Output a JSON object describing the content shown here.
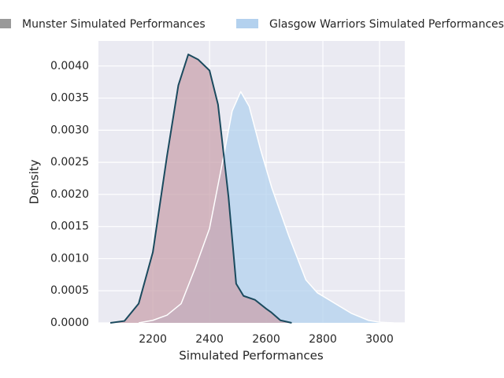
{
  "chart_data": {
    "type": "area",
    "xlabel": "Simulated Performances",
    "ylabel": "Density",
    "xlim": [
      2008,
      3089
    ],
    "ylim": [
      0,
      0.00439
    ],
    "xticks": [
      2200,
      2400,
      2600,
      2800,
      3000
    ],
    "yticks": [
      {
        "value": 0,
        "label": "0.0000"
      },
      {
        "value": 0.0005,
        "label": "0.0005"
      },
      {
        "value": 0.001,
        "label": "0.0010"
      },
      {
        "value": 0.0015,
        "label": "0.0015"
      },
      {
        "value": 0.002,
        "label": "0.0020"
      },
      {
        "value": 0.0025,
        "label": "0.0025"
      },
      {
        "value": 0.003,
        "label": "0.0030"
      },
      {
        "value": 0.0035,
        "label": "0.0035"
      },
      {
        "value": 0.004,
        "label": "0.0040"
      }
    ],
    "grid": true,
    "legend": "top",
    "series": [
      {
        "name": "Munster Simulated Performances",
        "color": "#c9a3ae",
        "line_color": "#1a4a5e",
        "x": [
          2050,
          2100,
          2150,
          2200,
          2250,
          2290,
          2325,
          2360,
          2400,
          2430,
          2467,
          2494,
          2520,
          2560,
          2600,
          2619,
          2650,
          2690
        ],
        "values": [
          0,
          3e-05,
          0.0003,
          0.0011,
          0.0026,
          0.0037,
          0.00418,
          0.0041,
          0.00393,
          0.0034,
          0.00196,
          0.00061,
          0.00042,
          0.00036,
          0.00022,
          0.00016,
          4e-05,
          0
        ]
      },
      {
        "name": "Glasgow Warriors Simulated Performances",
        "color": "#b3d1ee",
        "line_color": "#ffffff",
        "x": [
          2150,
          2200,
          2250,
          2300,
          2350,
          2400,
          2450,
          2480,
          2510,
          2540,
          2580,
          2620,
          2680,
          2740,
          2780,
          2840,
          2900,
          2960,
          3000,
          3050
        ],
        "values": [
          0,
          4e-05,
          0.00012,
          0.0003,
          0.00086,
          0.00147,
          0.0026,
          0.0033,
          0.0036,
          0.00337,
          0.0027,
          0.0021,
          0.00135,
          0.00067,
          0.00047,
          0.00031,
          0.00015,
          4e-05,
          1e-05,
          0
        ]
      }
    ]
  }
}
